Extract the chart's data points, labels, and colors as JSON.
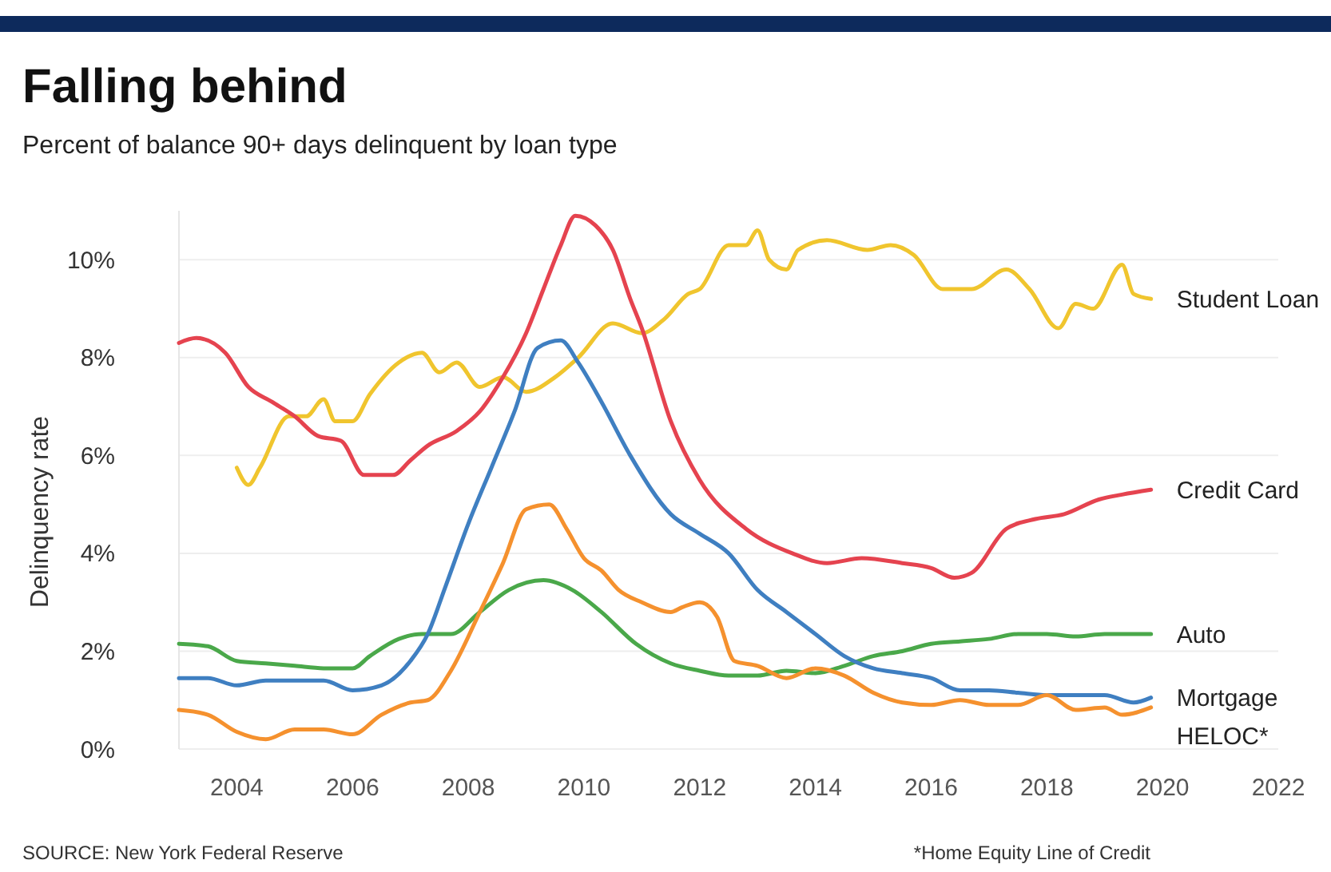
{
  "chart_data": {
    "type": "line",
    "title": "Falling behind",
    "subtitle": "Percent of balance 90+ days delinquent by loan type",
    "ylabel": "Delinquency rate",
    "xlim": [
      2003,
      2022
    ],
    "xticks": [
      2004,
      2006,
      2008,
      2010,
      2012,
      2014,
      2016,
      2018,
      2020,
      2022
    ],
    "ylim": [
      0,
      11
    ],
    "yticks": [
      {
        "value": 0,
        "label": "0%"
      },
      {
        "value": 2,
        "label": "2%"
      },
      {
        "value": 4,
        "label": "4%"
      },
      {
        "value": 6,
        "label": "6%"
      },
      {
        "value": 8,
        "label": "8%"
      },
      {
        "value": 10,
        "label": "10%"
      }
    ],
    "grid": "y",
    "legend": false,
    "line_style": "solid",
    "annotations": [
      "SOURCE: New York Federal Reserve",
      "*Home Equity Line of Credit"
    ],
    "series": [
      {
        "name": "Student Loan",
        "color": "#f0c52e",
        "x": [
          2004.0,
          2004.2,
          2004.4,
          2004.9,
          2005.2,
          2005.5,
          2005.7,
          2006.0,
          2006.3,
          2006.8,
          2007.2,
          2007.5,
          2007.8,
          2008.2,
          2008.6,
          2009.0,
          2009.5,
          2009.9,
          2010.5,
          2011.0,
          2011.4,
          2011.8,
          2012.0,
          2012.5,
          2012.8,
          2013.0,
          2013.2,
          2013.5,
          2013.7,
          2014.2,
          2014.9,
          2015.3,
          2015.7,
          2016.2,
          2016.7,
          2017.3,
          2017.7,
          2018.2,
          2018.5,
          2018.8,
          2019.3,
          2019.5,
          2019.8
        ],
        "values": [
          5.75,
          5.4,
          5.75,
          6.8,
          6.8,
          7.15,
          6.7,
          6.7,
          7.25,
          7.9,
          8.1,
          7.7,
          7.9,
          7.4,
          7.6,
          7.3,
          7.6,
          8.0,
          8.7,
          8.5,
          8.8,
          9.3,
          9.4,
          10.3,
          10.3,
          10.6,
          10.0,
          9.8,
          10.2,
          10.4,
          10.2,
          10.3,
          10.1,
          9.4,
          9.4,
          9.8,
          9.4,
          8.6,
          9.1,
          9.0,
          9.9,
          9.3,
          9.2
        ]
      },
      {
        "name": "Credit Card",
        "color": "#e5434f",
        "x": [
          2003.0,
          2003.3,
          2003.8,
          2004.2,
          2004.6,
          2005.0,
          2005.4,
          2005.8,
          2006.2,
          2006.7,
          2007.0,
          2007.3,
          2007.8,
          2008.2,
          2008.6,
          2009.0,
          2009.3,
          2009.6,
          2009.85,
          2010.2,
          2010.5,
          2010.8,
          2011.0,
          2011.5,
          2012.0,
          2012.8,
          2013.6,
          2014.2,
          2014.8,
          2015.5,
          2016.0,
          2016.4,
          2016.7,
          2017.3,
          2017.8,
          2018.3,
          2018.9,
          2019.3,
          2019.8
        ],
        "values": [
          8.3,
          8.4,
          8.1,
          7.4,
          7.1,
          6.8,
          6.4,
          6.3,
          5.6,
          5.6,
          5.9,
          6.2,
          6.5,
          6.9,
          7.6,
          8.5,
          9.4,
          10.3,
          10.9,
          10.7,
          10.2,
          9.2,
          8.6,
          6.7,
          5.5,
          4.5,
          4.0,
          3.8,
          3.9,
          3.8,
          3.7,
          3.5,
          3.6,
          4.5,
          4.7,
          4.8,
          5.1,
          5.2,
          5.3
        ]
      },
      {
        "name": "Auto",
        "color": "#4aa84a",
        "x": [
          2003.0,
          2003.5,
          2004.0,
          2004.5,
          2005.0,
          2005.5,
          2006.0,
          2006.3,
          2006.8,
          2007.2,
          2007.7,
          2008.2,
          2008.7,
          2009.3,
          2009.8,
          2010.3,
          2010.9,
          2011.5,
          2012.0,
          2012.5,
          2013.0,
          2013.5,
          2014.0,
          2014.5,
          2015.0,
          2015.5,
          2016.0,
          2016.5,
          2017.0,
          2017.5,
          2018.0,
          2018.5,
          2019.0,
          2019.8
        ],
        "values": [
          2.15,
          2.1,
          1.8,
          1.75,
          1.7,
          1.65,
          1.65,
          1.9,
          2.25,
          2.35,
          2.35,
          2.8,
          3.25,
          3.45,
          3.25,
          2.8,
          2.15,
          1.75,
          1.6,
          1.5,
          1.5,
          1.6,
          1.55,
          1.7,
          1.9,
          2.0,
          2.15,
          2.2,
          2.25,
          2.35,
          2.35,
          2.3,
          2.35,
          2.35
        ]
      },
      {
        "name": "Mortgage",
        "color": "#3f7fc1",
        "x": [
          2003.0,
          2003.5,
          2004.0,
          2004.5,
          2005.0,
          2005.5,
          2006.0,
          2006.5,
          2007.0,
          2007.3,
          2007.6,
          2008.0,
          2008.4,
          2008.8,
          2009.2,
          2009.6,
          2009.9,
          2010.3,
          2010.8,
          2011.5,
          2012.0,
          2012.5,
          2013.0,
          2013.5,
          2014.0,
          2014.5,
          2015.0,
          2015.5,
          2016.0,
          2016.5,
          2017.0,
          2017.5,
          2018.0,
          2018.5,
          2019.0,
          2019.5,
          2019.8
        ],
        "values": [
          1.45,
          1.45,
          1.3,
          1.4,
          1.4,
          1.4,
          1.2,
          1.3,
          1.8,
          2.35,
          3.3,
          4.6,
          5.75,
          6.9,
          8.2,
          8.35,
          7.9,
          7.1,
          6.0,
          4.8,
          4.4,
          4.0,
          3.25,
          2.8,
          2.35,
          1.9,
          1.65,
          1.55,
          1.45,
          1.2,
          1.2,
          1.15,
          1.1,
          1.1,
          1.1,
          0.95,
          1.05
        ]
      },
      {
        "name": "HELOC*",
        "color": "#f5912e",
        "x": [
          2003.0,
          2003.5,
          2004.0,
          2004.5,
          2005.0,
          2005.5,
          2006.0,
          2006.5,
          2007.0,
          2007.3,
          2007.7,
          2008.2,
          2008.6,
          2009.0,
          2009.4,
          2009.7,
          2010.0,
          2010.3,
          2010.6,
          2011.0,
          2011.5,
          2011.7,
          2012.0,
          2012.3,
          2012.6,
          2013.0,
          2013.5,
          2014.0,
          2014.5,
          2015.0,
          2015.5,
          2016.0,
          2016.5,
          2017.0,
          2017.5,
          2018.0,
          2018.5,
          2019.0,
          2019.3,
          2019.8
        ],
        "values": [
          0.8,
          0.7,
          0.35,
          0.2,
          0.4,
          0.4,
          0.3,
          0.7,
          0.95,
          1.0,
          1.6,
          2.8,
          3.8,
          4.9,
          5.0,
          4.5,
          3.9,
          3.65,
          3.25,
          3.0,
          2.8,
          2.9,
          3.0,
          2.7,
          1.8,
          1.7,
          1.45,
          1.65,
          1.5,
          1.15,
          0.95,
          0.9,
          1.0,
          0.9,
          0.9,
          1.1,
          0.8,
          0.85,
          0.7,
          0.85
        ]
      }
    ]
  }
}
